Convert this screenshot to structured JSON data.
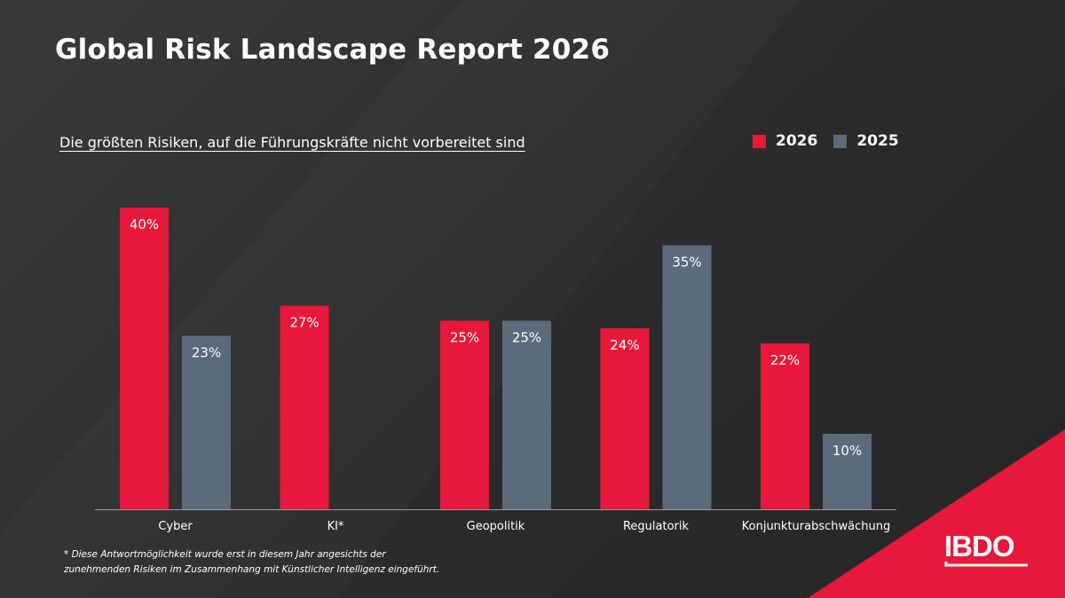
{
  "title": "Global Risk Landscape Report 2026",
  "subtitle": "Die größten Risiken, auf die Führungskräfte nicht vorbereitet sind",
  "footnote_line1": "* Diese Antwortmöglichkeit wurde erst in diesem Jahr angesichts der",
  "footnote_line2": "zunehmenden Risiken im Zusammenhang mit Künstlicher Intelligenz eingeführt.",
  "logo_text": "IBDO",
  "colors": {
    "series_2026": "#e8183b",
    "series_2025": "#5b6b7c",
    "accent": "#e8183b"
  },
  "chart_data": {
    "type": "bar",
    "categories": [
      "Cyber",
      "KI*",
      "Geopolitik",
      "Regulatorik",
      "Konjunkturabschwächung"
    ],
    "series": [
      {
        "name": "2026",
        "values": [
          40,
          27,
          25,
          24,
          22
        ],
        "labels": [
          "40%",
          "27%",
          "25%",
          "24%",
          "22%"
        ]
      },
      {
        "name": "2025",
        "values": [
          23,
          null,
          25,
          35,
          10
        ],
        "labels": [
          "23%",
          "",
          "25%",
          "35%",
          "10%"
        ]
      }
    ],
    "unit": "%",
    "ylim": [
      0,
      40
    ],
    "legend_position": "top-right",
    "grid": false
  }
}
